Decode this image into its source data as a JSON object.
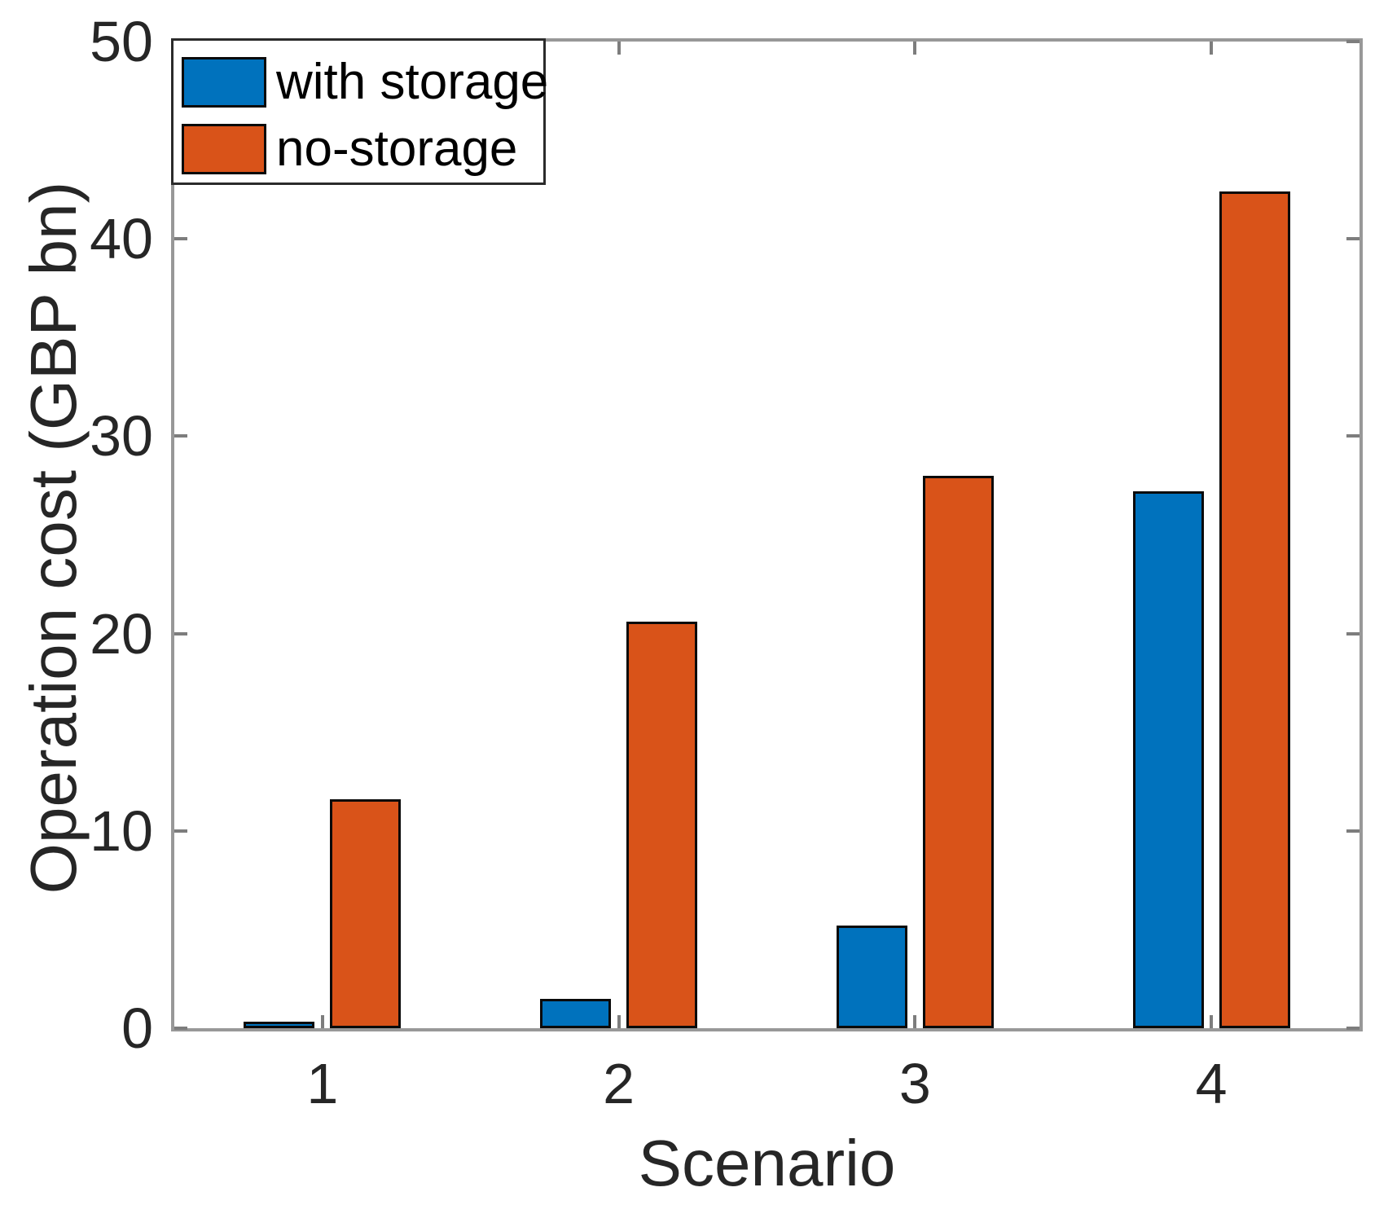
{
  "figure": {
    "background": "#ffffff",
    "axis_line_color": "#989898",
    "tick_color": "#7d7d7d",
    "bar_edge_color": "#0a0a0a",
    "text_color": "#262626"
  },
  "chart_data": {
    "type": "bar",
    "title": "",
    "xlabel": "Scenario",
    "ylabel": "Operation cost (GBP bn)",
    "categories": [
      "1",
      "2",
      "3",
      "4"
    ],
    "series": [
      {
        "name": "with storage",
        "color": "#0072BD",
        "values": [
          0.35,
          1.5,
          5.2,
          27.2
        ]
      },
      {
        "name": "no-storage",
        "color": "#D95319",
        "values": [
          11.6,
          20.6,
          28.0,
          42.4
        ]
      }
    ],
    "ylim": [
      0,
      50
    ],
    "yticks": [
      0,
      10,
      20,
      30,
      40,
      50
    ],
    "grid": false,
    "legend_position": "top-left",
    "box": true
  }
}
